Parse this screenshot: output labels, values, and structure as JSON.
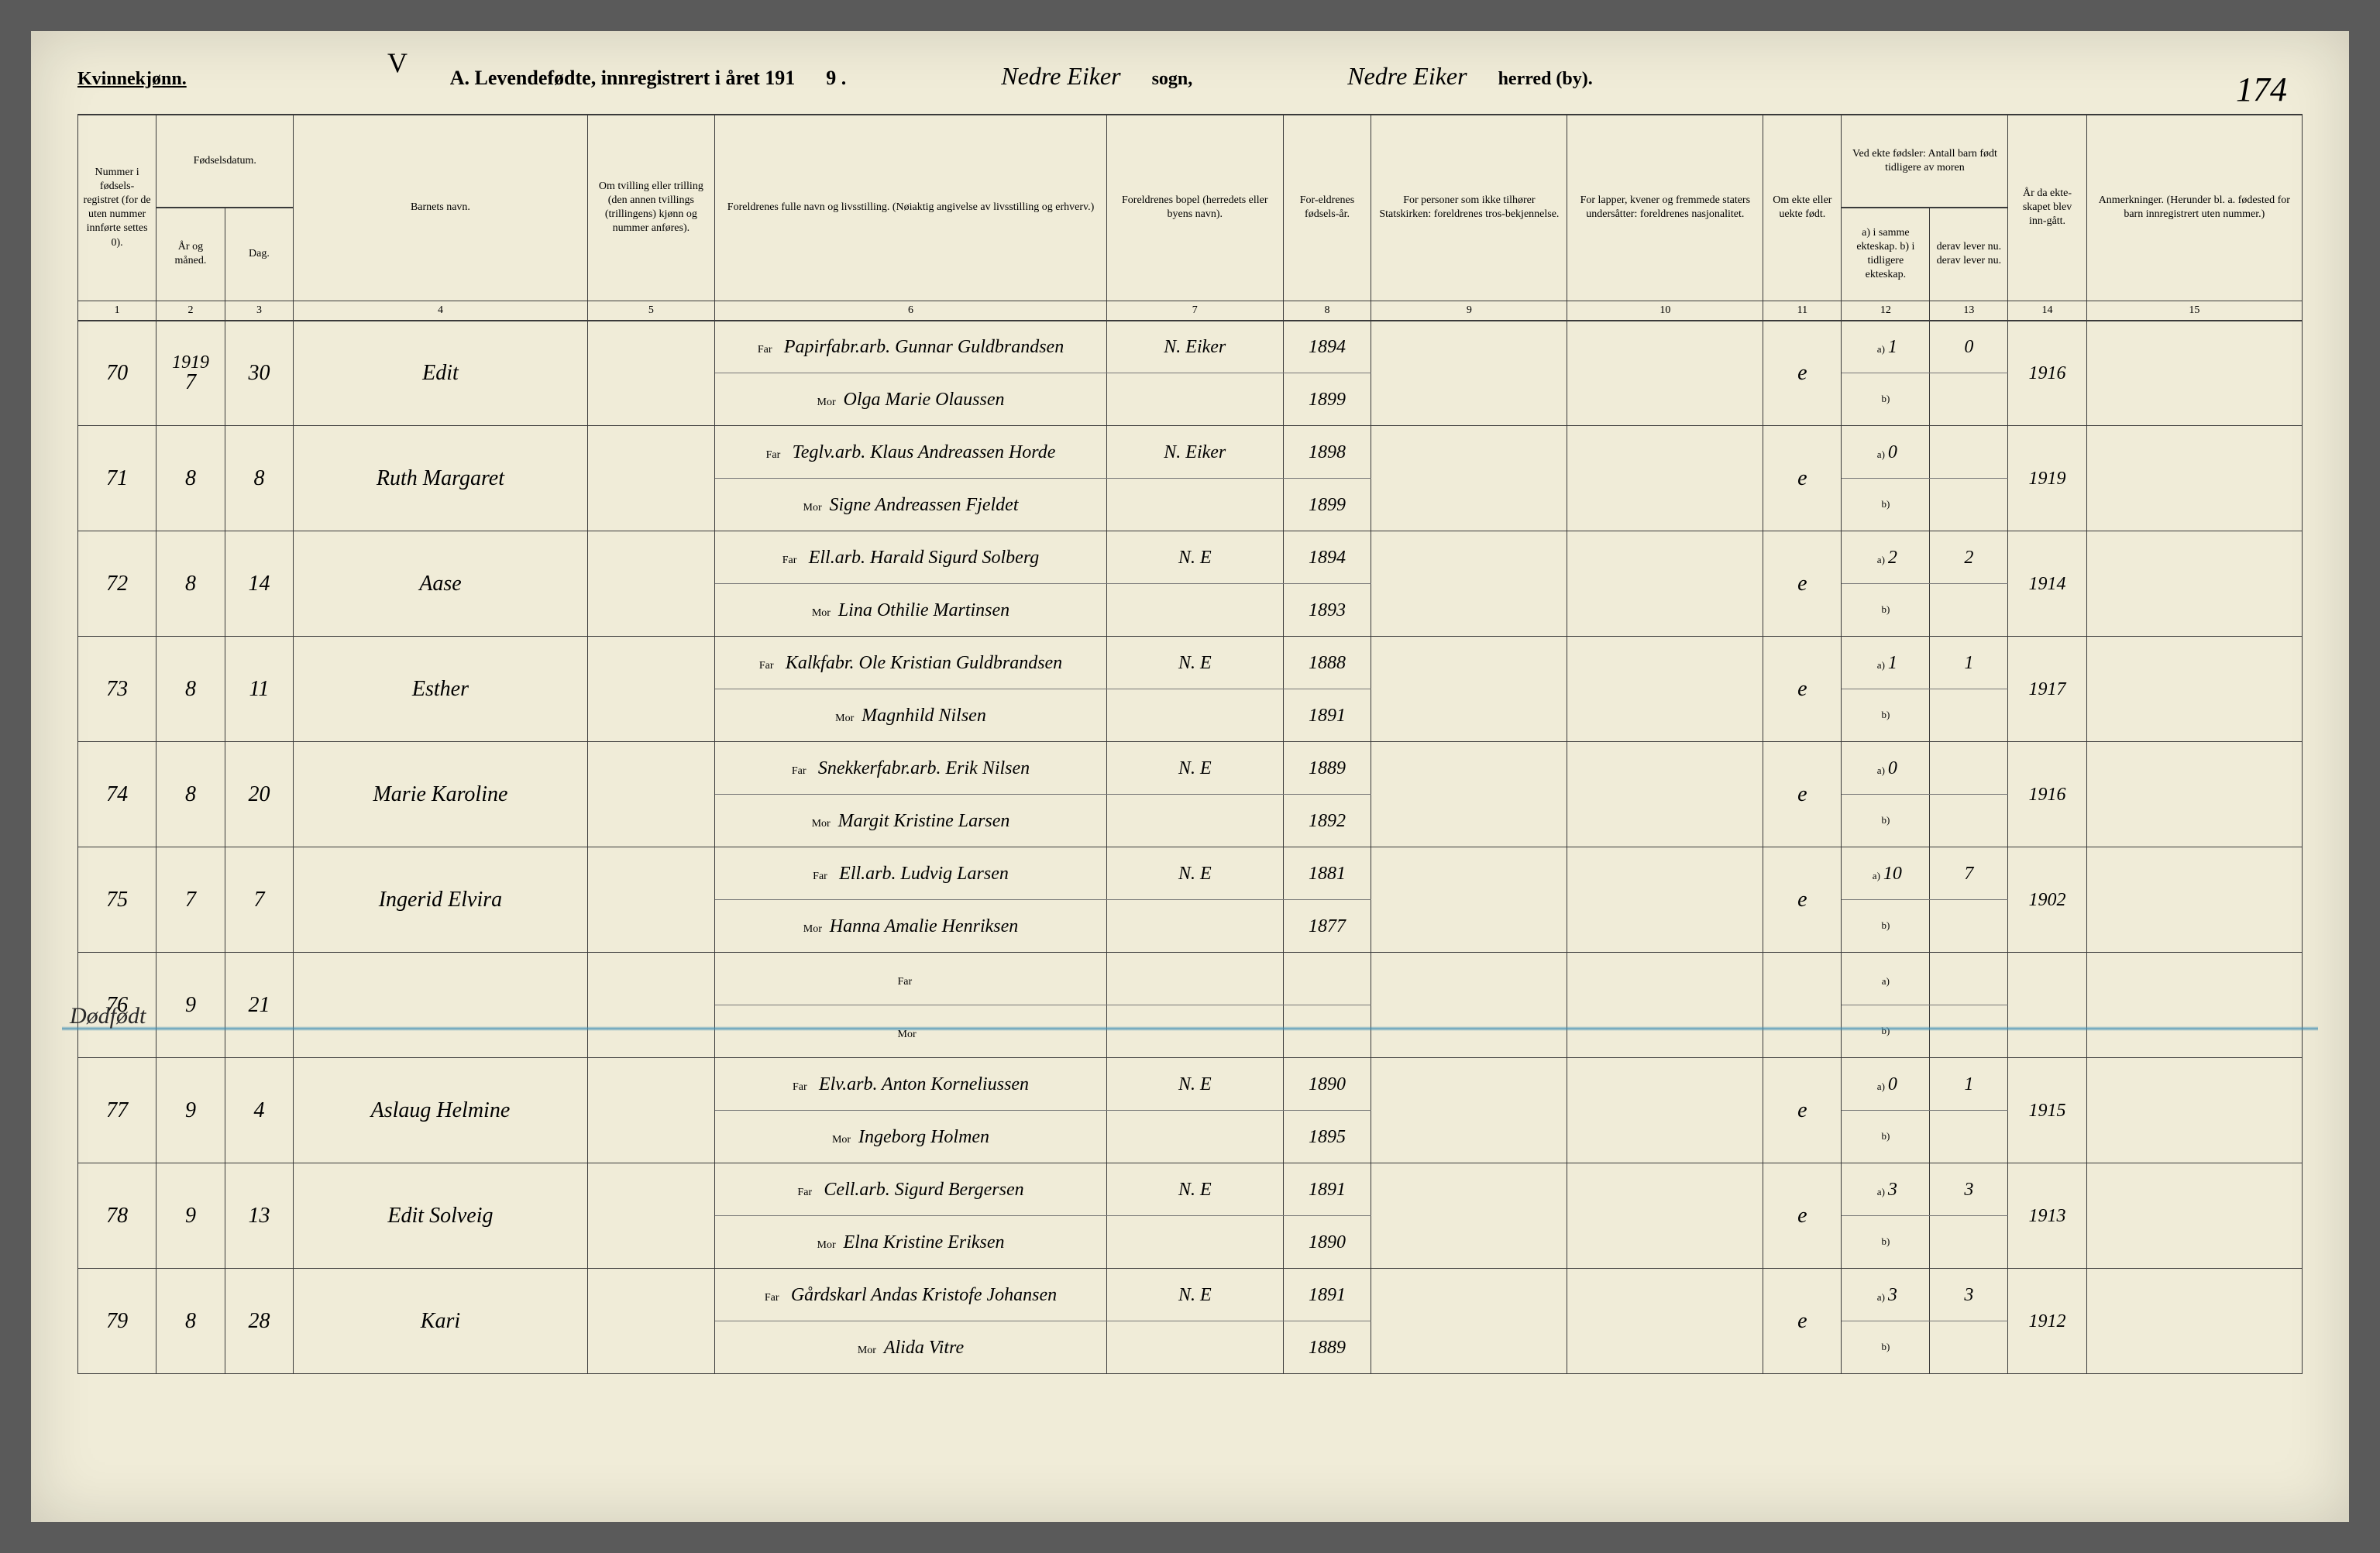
{
  "header": {
    "gender_label": "Kvinnekjønn.",
    "v_mark": "V",
    "title_prefix": "A.  Levendefødte, innregistrert i året 191",
    "year_suffix": "9 .",
    "sogn_value": "Nedre Eiker",
    "sogn_label": "sogn,",
    "herred_value": "Nedre Eiker",
    "herred_label": "herred (by).",
    "page_number": "174"
  },
  "columns": {
    "c1": "Nummer i fødsels-registret (for de uten nummer innførte settes 0).",
    "c2_group": "Fødselsdatum.",
    "c2": "År og måned.",
    "c3": "Dag.",
    "c4": "Barnets navn.",
    "c5": "Om tvilling eller trilling (den annen tvillings (trillingens) kjønn og nummer anføres).",
    "c6": "Foreldrenes fulle navn og livsstilling. (Nøiaktig angivelse av livsstilling og erhverv.)",
    "c7": "Foreldrenes bopel (herredets eller byens navn).",
    "c8": "For-eldrenes fødsels-år.",
    "c9": "For personer som ikke tilhører Statskirken: foreldrenes tros-bekjennelse.",
    "c10": "For lapper, kvener og fremmede staters undersåtter: foreldrenes nasjonalitet.",
    "c11": "Om ekte eller uekte født.",
    "c12_13_group": "Ved ekte fødsler: Antall barn født tidligere av moren",
    "c12": "a) i samme ekteskap.  b) i tidligere ekteskap.",
    "c13": "derav lever nu.  derav lever nu.",
    "c14": "År da ekte-skapet blev inn-gått.",
    "c15": "Anmerkninger. (Herunder bl. a. fødested for barn innregistrert uten nummer.)",
    "far_label": "Far",
    "mor_label": "Mor",
    "a_label": "a)",
    "b_label": "b)"
  },
  "stillborn": {
    "label": "Dødfødt",
    "line_color": "#4a94b8"
  },
  "rows": [
    {
      "num": "70",
      "year_top": "1919",
      "month": "7",
      "day": "30",
      "name": "Edit",
      "far": "Papirfabr.arb. Gunnar Guldbrandsen",
      "mor": "Olga Marie Olaussen",
      "bopel": "N. Eiker",
      "far_aar": "1894",
      "mor_aar": "1899",
      "ekte": "e",
      "a": "1",
      "a_lever": "0",
      "aar_ekt": "1916"
    },
    {
      "num": "71",
      "month": "8",
      "day": "8",
      "name": "Ruth Margaret",
      "far": "Teglv.arb. Klaus Andreassen Horde",
      "mor": "Signe Andreassen Fjeldet",
      "bopel": "N. Eiker",
      "far_aar": "1898",
      "mor_aar": "1899",
      "ekte": "e",
      "a": "0",
      "a_lever": "",
      "aar_ekt": "1919"
    },
    {
      "num": "72",
      "month": "8",
      "day": "14",
      "name": "Aase",
      "far": "Ell.arb. Harald Sigurd Solberg",
      "mor": "Lina Othilie Martinsen",
      "bopel": "N. E",
      "far_aar": "1894",
      "mor_aar": "1893",
      "ekte": "e",
      "a": "2",
      "a_lever": "2",
      "aar_ekt": "1914"
    },
    {
      "num": "73",
      "month": "8",
      "day": "11",
      "name": "Esther",
      "far": "Kalkfabr. Ole Kristian Guldbrandsen",
      "mor": "Magnhild Nilsen",
      "bopel": "N. E",
      "far_aar": "1888",
      "mor_aar": "1891",
      "ekte": "e",
      "a": "1",
      "a_lever": "1",
      "aar_ekt": "1917"
    },
    {
      "num": "74",
      "month": "8",
      "day": "20",
      "name": "Marie Karoline",
      "far": "Snekkerfabr.arb. Erik Nilsen",
      "mor": "Margit Kristine Larsen",
      "bopel": "N. E",
      "far_aar": "1889",
      "mor_aar": "1892",
      "ekte": "e",
      "a": "0",
      "a_lever": "",
      "aar_ekt": "1916"
    },
    {
      "num": "75",
      "month": "7",
      "day": "7",
      "name": "Ingerid Elvira",
      "far": "Ell.arb. Ludvig Larsen",
      "mor": "Hanna Amalie Henriksen",
      "bopel": "N. E",
      "far_aar": "1881",
      "mor_aar": "1877",
      "ekte": "e",
      "a": "10",
      "a_lever": "7",
      "aar_ekt": "1902"
    },
    {
      "num": "76",
      "month": "9",
      "day": "21",
      "name": "",
      "far": "",
      "mor": "",
      "bopel": "",
      "far_aar": "",
      "mor_aar": "",
      "ekte": "",
      "a": "",
      "a_lever": "",
      "aar_ekt": "",
      "is_stillborn": true
    },
    {
      "num": "77",
      "month": "9",
      "day": "4",
      "name": "Aslaug Helmine",
      "far": "Elv.arb. Anton Korneliussen",
      "mor": "Ingeborg Holmen",
      "bopel": "N. E",
      "far_aar": "1890",
      "mor_aar": "1895",
      "ekte": "e",
      "a": "0",
      "a_lever": "1",
      "aar_ekt": "1915"
    },
    {
      "num": "78",
      "month": "9",
      "day": "13",
      "name": "Edit Solveig",
      "far": "Cell.arb. Sigurd Bergersen",
      "mor": "Elna Kristine Eriksen",
      "bopel": "N. E",
      "far_aar": "1891",
      "mor_aar": "1890",
      "ekte": "e",
      "a": "3",
      "a_lever": "3",
      "aar_ekt": "1913"
    },
    {
      "num": "79",
      "month": "8",
      "day": "28",
      "name": "Kari",
      "far": "Gårdskarl Andas Kristofe Johansen",
      "mor": "Alida Vitre",
      "bopel": "N. E",
      "far_aar": "1891",
      "mor_aar": "1889",
      "ekte": "e",
      "a": "3",
      "a_lever": "3",
      "aar_ekt": "1912"
    }
  ],
  "colors": {
    "paper": "#f0ecd8",
    "ink": "#2a2a2a",
    "rule": "#3a3a3a",
    "blue_pencil": "#4a94b8"
  }
}
